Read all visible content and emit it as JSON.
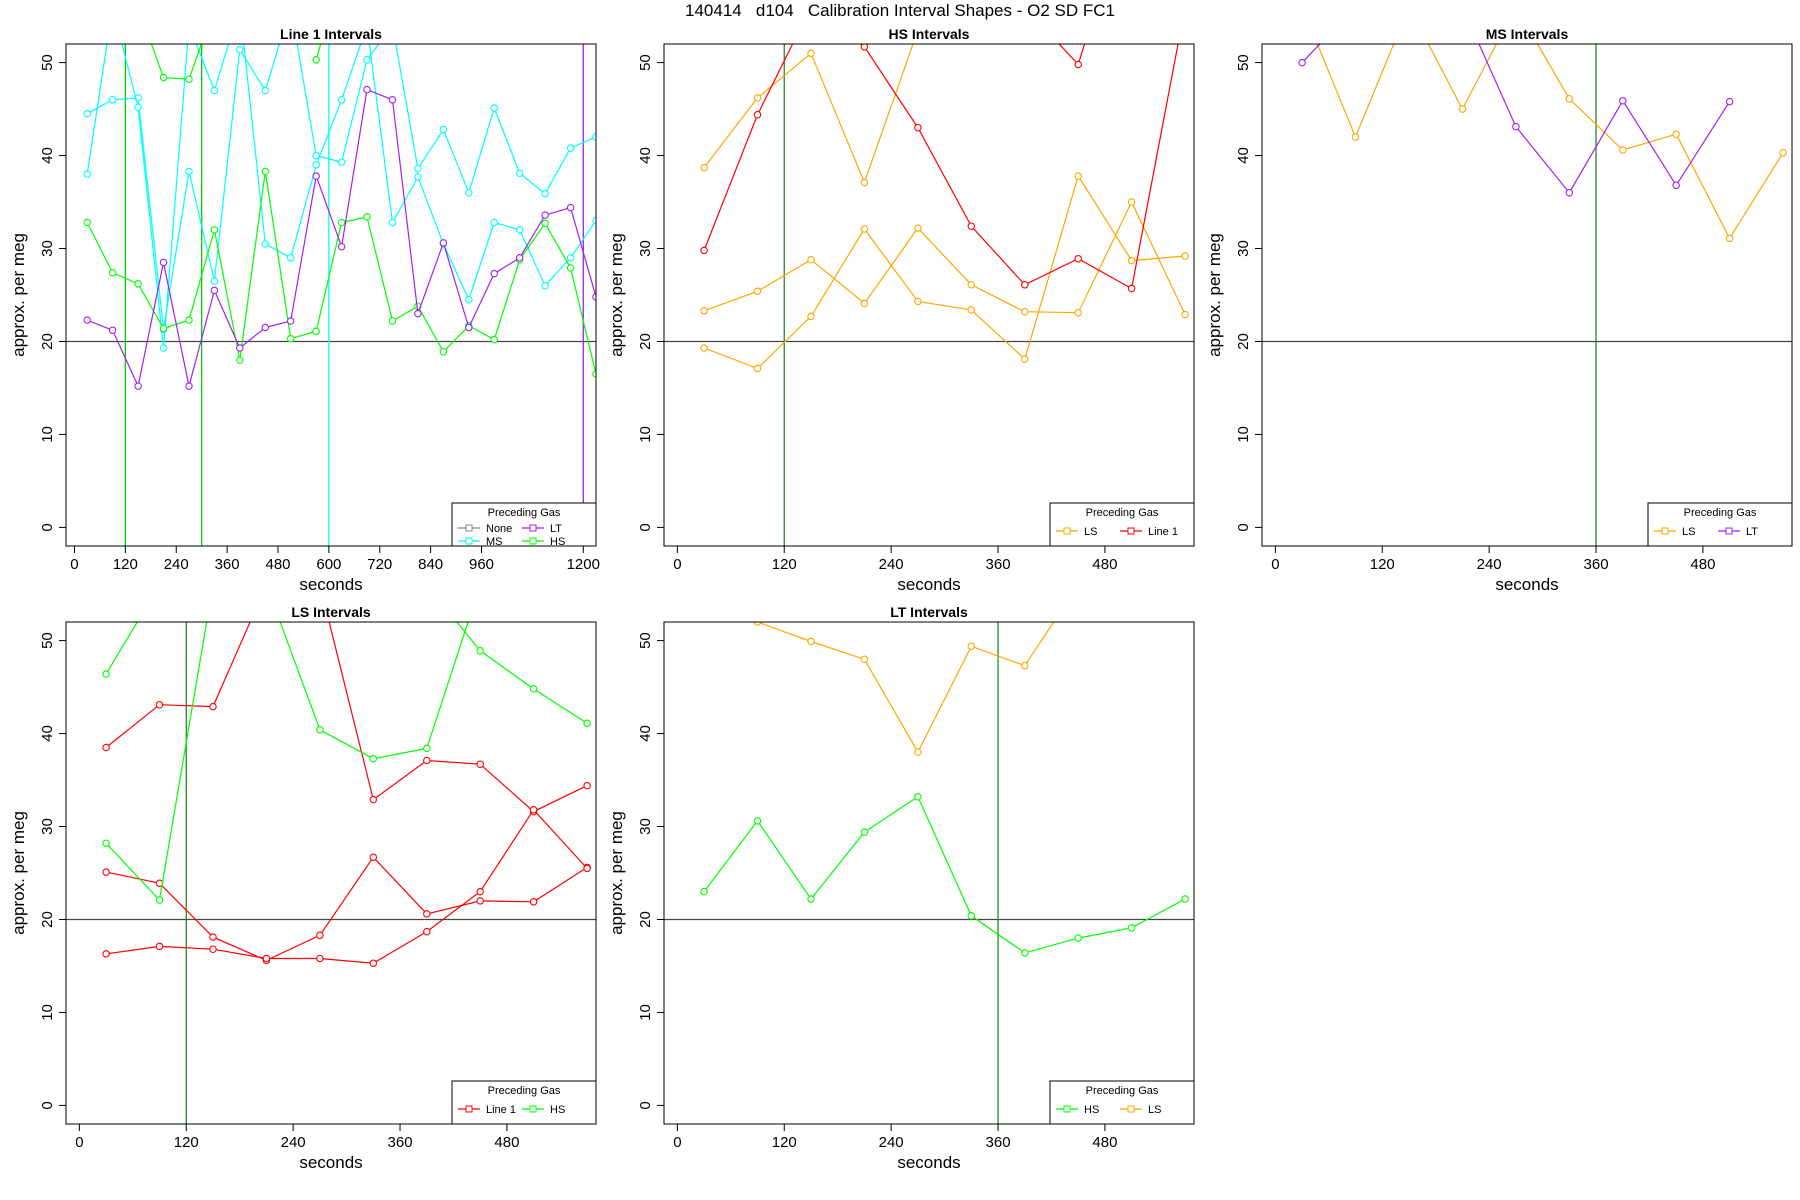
{
  "main_title": "140414   d104   Calibration Interval Shapes - O2 SD FC1",
  "colors": {
    "None": "#888888",
    "LT": "#A020F0",
    "MS": "#00FFFF",
    "HS": "#00FF00",
    "LS": "#FFA500",
    "Line 1": "#FF0000",
    "vline_green": "#228B22",
    "reference": "#444444",
    "frame": "#000000"
  },
  "chart_data": [
    {
      "type": "line",
      "title": "Line 1 Intervals",
      "xlabel": "seconds",
      "ylabel": "approx. per meg",
      "xlim": [
        -20,
        1230
      ],
      "ylim": [
        -2,
        52
      ],
      "xticks": [
        "0",
        "120",
        "240",
        "360",
        "480",
        "600",
        "720",
        "840",
        "960",
        "1200"
      ],
      "xtick_values": [
        0,
        120,
        240,
        360,
        480,
        600,
        720,
        840,
        960,
        1200
      ],
      "yticks": [
        0,
        10,
        20,
        30,
        40,
        50
      ],
      "hline": 20,
      "vlines": [
        {
          "x": 120,
          "color": "#00CC00"
        },
        {
          "x": 300,
          "color": "#00CC00"
        },
        {
          "x": 600,
          "color": "#00FFFF"
        },
        {
          "x": 1200,
          "color": "#A020F0"
        }
      ],
      "legend": {
        "title": "Preceding Gas",
        "position": "bottom-right",
        "columns": 2,
        "entries": [
          {
            "label": "None",
            "color": "#888888"
          },
          {
            "label": "LT",
            "color": "#A020F0"
          },
          {
            "label": "MS",
            "color": "#00FFFF"
          },
          {
            "label": "HS",
            "color": "#00FF00"
          }
        ]
      },
      "series": [
        {
          "name": "MS",
          "color": "#00FFFF",
          "x": [
            30,
            90,
            150,
            210,
            270,
            330,
            390,
            450,
            510,
            570,
            630,
            690,
            750,
            810,
            870,
            930,
            990,
            1050,
            1110,
            1170,
            1230
          ],
          "y": [
            44.5,
            46,
            46.2,
            21.3,
            38.3,
            26.5,
            51.4,
            47,
            56,
            40,
            39.3,
            50.3,
            54,
            38.6,
            42.8,
            36,
            45.1,
            38.1,
            35.9,
            40.8,
            42
          ]
        },
        {
          "name": "MS",
          "color": "#00FFFF",
          "x": [
            30,
            90,
            150,
            210,
            270,
            330,
            390,
            450,
            510,
            570,
            630,
            690,
            750,
            810,
            870,
            930,
            990,
            1050,
            1110,
            1170,
            1230
          ],
          "y": [
            38,
            56,
            45.2,
            19.3,
            54,
            47,
            56,
            30.5,
            29,
            39,
            46,
            54,
            32.8,
            37.7,
            30.5,
            24.5,
            32.8,
            32,
            26,
            29,
            33
          ]
        },
        {
          "name": "HS",
          "color": "#00FF00",
          "x": [
            30,
            90,
            150,
            210,
            270,
            330,
            390,
            450,
            510,
            570,
            630,
            690,
            750,
            810,
            870,
            930,
            990,
            1050,
            1110,
            1170,
            1230
          ],
          "y": [
            32.8,
            27.4,
            26.2,
            21.4,
            22.3,
            32,
            18,
            38.3,
            20.3,
            21.1,
            32.8,
            33.4,
            22.2,
            23.8,
            18.9,
            21.7,
            20.2,
            28.8,
            32.7,
            27.9,
            16.5
          ]
        },
        {
          "name": "HS",
          "color": "#00FF00",
          "x": [
            150,
            210,
            270,
            330
          ],
          "y": [
            56,
            48.4,
            48.2,
            56
          ]
        },
        {
          "name": "HS",
          "color": "#00FF00",
          "x": [
            570,
            630
          ],
          "y": [
            50.3,
            60
          ]
        },
        {
          "name": "LT",
          "color": "#A020F0",
          "x": [
            30,
            90,
            150,
            210,
            270,
            330,
            390,
            450,
            510,
            570,
            630,
            690,
            750,
            810,
            870,
            930,
            990,
            1050,
            1110,
            1170,
            1230
          ],
          "y": [
            22.3,
            21.2,
            15.2,
            28.5,
            15.2,
            25.5,
            19.3,
            21.5,
            22.2,
            37.8,
            30.2,
            47.1,
            46,
            23,
            30.6,
            21.5,
            27.3,
            29,
            33.6,
            34.4,
            24.8
          ]
        }
      ]
    },
    {
      "type": "line",
      "title": "HS Intervals",
      "xlabel": "seconds",
      "ylabel": "approx. per meg",
      "xlim": [
        -15,
        580
      ],
      "ylim": [
        -2,
        52
      ],
      "xticks": [
        "0",
        "120",
        "240",
        "360",
        "480"
      ],
      "xtick_values": [
        0,
        120,
        240,
        360,
        480
      ],
      "yticks": [
        0,
        10,
        20,
        30,
        40,
        50
      ],
      "hline": 20,
      "vlines": [
        {
          "x": 120,
          "color": "#228B22"
        }
      ],
      "legend": {
        "title": "Preceding Gas",
        "position": "bottom-right",
        "columns": 2,
        "entries": [
          {
            "label": "LS",
            "color": "#FFA500"
          },
          {
            "label": "Line 1",
            "color": "#FF0000"
          }
        ]
      },
      "series": [
        {
          "name": "LS",
          "color": "#FFA500",
          "x": [
            30,
            90,
            150,
            210,
            270,
            330,
            390,
            450,
            510,
            570
          ],
          "y": [
            38.7,
            46.2,
            51,
            37.1,
            53.5,
            56,
            56,
            56,
            56,
            56
          ]
        },
        {
          "name": "LS",
          "color": "#FFA500",
          "x": [
            30,
            90,
            150,
            210,
            270,
            330,
            390,
            450,
            510,
            570
          ],
          "y": [
            23.3,
            25.4,
            28.8,
            24.1,
            32.2,
            26.1,
            23.2,
            23.1,
            35,
            22.9
          ]
        },
        {
          "name": "LS",
          "color": "#FFA500",
          "x": [
            30,
            90,
            150,
            210,
            270,
            330,
            390,
            450,
            510,
            570
          ],
          "y": [
            19.3,
            17.1,
            22.7,
            32.1,
            24.3,
            23.4,
            18.1,
            37.8,
            28.7,
            29.2
          ]
        },
        {
          "name": "Line 1",
          "color": "#FF0000",
          "x": [
            30,
            90,
            150,
            210,
            270,
            330,
            390,
            450,
            510,
            570
          ],
          "y": [
            29.8,
            44.4,
            56,
            51.7,
            43,
            32.4,
            26.1,
            28.9,
            25.7,
            56
          ]
        },
        {
          "name": "Line 1",
          "color": "#FF0000",
          "x": [
            390,
            450,
            470
          ],
          "y": [
            56,
            49.8,
            56
          ]
        }
      ]
    },
    {
      "type": "line",
      "title": "MS Intervals",
      "xlabel": "seconds",
      "ylabel": "approx. per meg",
      "xlim": [
        -15,
        580
      ],
      "ylim": [
        -2,
        52
      ],
      "xticks": [
        "0",
        "120",
        "240",
        "360",
        "480"
      ],
      "xtick_values": [
        0,
        120,
        240,
        360,
        480
      ],
      "yticks": [
        0,
        10,
        20,
        30,
        40,
        50
      ],
      "hline": 20,
      "vlines": [
        {
          "x": 360,
          "color": "#228B22"
        }
      ],
      "legend": {
        "title": "Preceding Gas",
        "position": "bottom-right",
        "columns": 2,
        "entries": [
          {
            "label": "LS",
            "color": "#FFA500"
          },
          {
            "label": "LT",
            "color": "#A020F0"
          }
        ]
      },
      "series": [
        {
          "name": "LS",
          "color": "#FFA500",
          "x": [
            30,
            90,
            150,
            210,
            270,
            330,
            390,
            450,
            510,
            570
          ],
          "y": [
            56,
            42,
            56,
            45,
            56,
            46.1,
            40.6,
            42.3,
            31.1,
            40.3
          ]
        },
        {
          "name": "LS",
          "color": "#FFA500",
          "x": [
            190,
            250,
            300
          ],
          "y": [
            56,
            52.5,
            56
          ]
        },
        {
          "name": "LT",
          "color": "#A020F0",
          "x": [
            30,
            90,
            150,
            210,
            270,
            330,
            390,
            450,
            510
          ],
          "y": [
            50,
            56,
            56,
            56,
            43.1,
            36,
            45.9,
            36.8,
            45.8
          ]
        }
      ]
    },
    {
      "type": "line",
      "title": "LS Intervals",
      "xlabel": "seconds",
      "ylabel": "approx. per meg",
      "xlim": [
        -15,
        580
      ],
      "ylim": [
        -2,
        52
      ],
      "xticks": [
        "0",
        "120",
        "240",
        "360",
        "480"
      ],
      "xtick_values": [
        0,
        120,
        240,
        360,
        480
      ],
      "yticks": [
        0,
        10,
        20,
        30,
        40,
        50
      ],
      "hline": 20,
      "vlines": [
        {
          "x": 120,
          "color": "#228B22"
        }
      ],
      "legend": {
        "title": "Preceding Gas",
        "position": "bottom-right",
        "columns": 2,
        "entries": [
          {
            "label": "Line 1",
            "color": "#FF0000"
          },
          {
            "label": "HS",
            "color": "#00FF00"
          }
        ]
      },
      "series": [
        {
          "name": "Line 1",
          "color": "#FF0000",
          "x": [
            30,
            90,
            150,
            210,
            270,
            330,
            390,
            450,
            510,
            570
          ],
          "y": [
            38.5,
            43.1,
            42.9,
            56,
            56,
            32.9,
            37.1,
            36.7,
            31.6,
            34.4
          ]
        },
        {
          "name": "Line 1",
          "color": "#FF0000",
          "x": [
            30,
            90,
            150,
            210,
            270,
            330,
            390,
            450,
            510,
            570
          ],
          "y": [
            25.1,
            23.9,
            18.1,
            15.6,
            18.3,
            26.7,
            20.6,
            22.0,
            21.9,
            25.6
          ]
        },
        {
          "name": "Line 1",
          "color": "#FF0000",
          "x": [
            30,
            90,
            150,
            210,
            270,
            330,
            390,
            450,
            510,
            570
          ],
          "y": [
            16.3,
            17.1,
            16.8,
            15.8,
            15.8,
            15.3,
            18.7,
            23.0,
            31.8,
            25.5
          ]
        },
        {
          "name": "HS",
          "color": "#00FF00",
          "x": [
            30,
            90,
            150,
            210,
            270,
            330,
            390,
            450,
            510,
            570
          ],
          "y": [
            46.4,
            56,
            56,
            56,
            40.4,
            37.3,
            38.4,
            56,
            56,
            56
          ]
        },
        {
          "name": "HS",
          "color": "#00FF00",
          "x": [
            30,
            90,
            150,
            210,
            270,
            330,
            390,
            450,
            510,
            570
          ],
          "y": [
            28.2,
            22.1,
            56,
            56,
            56,
            56,
            56,
            48.9,
            44.8,
            41.1
          ]
        }
      ]
    },
    {
      "type": "line",
      "title": "LT Intervals",
      "xlabel": "seconds",
      "ylabel": "approx. per meg",
      "xlim": [
        -15,
        580
      ],
      "ylim": [
        -2,
        52
      ],
      "xticks": [
        "0",
        "120",
        "240",
        "360",
        "480"
      ],
      "xtick_values": [
        0,
        120,
        240,
        360,
        480
      ],
      "yticks": [
        0,
        10,
        20,
        30,
        40,
        50
      ],
      "hline": 20,
      "vlines": [
        {
          "x": 360,
          "color": "#228B22"
        }
      ],
      "legend": {
        "title": "Preceding Gas",
        "position": "bottom-right",
        "columns": 2,
        "entries": [
          {
            "label": "HS",
            "color": "#00FF00"
          },
          {
            "label": "LS",
            "color": "#FFA500"
          }
        ]
      },
      "series": [
        {
          "name": "LS",
          "color": "#FFA500",
          "x": [
            30,
            90,
            150,
            210,
            270,
            330,
            390,
            450
          ],
          "y": [
            56,
            52,
            49.9,
            48,
            38,
            49.4,
            47.3,
            56
          ]
        },
        {
          "name": "HS",
          "color": "#00FF00",
          "x": [
            30,
            90,
            150,
            210,
            270,
            330,
            390,
            450,
            510,
            570
          ],
          "y": [
            23,
            30.6,
            22.2,
            29.4,
            33.2,
            20.4,
            16.4,
            18,
            19.1,
            22.2
          ]
        }
      ]
    }
  ]
}
